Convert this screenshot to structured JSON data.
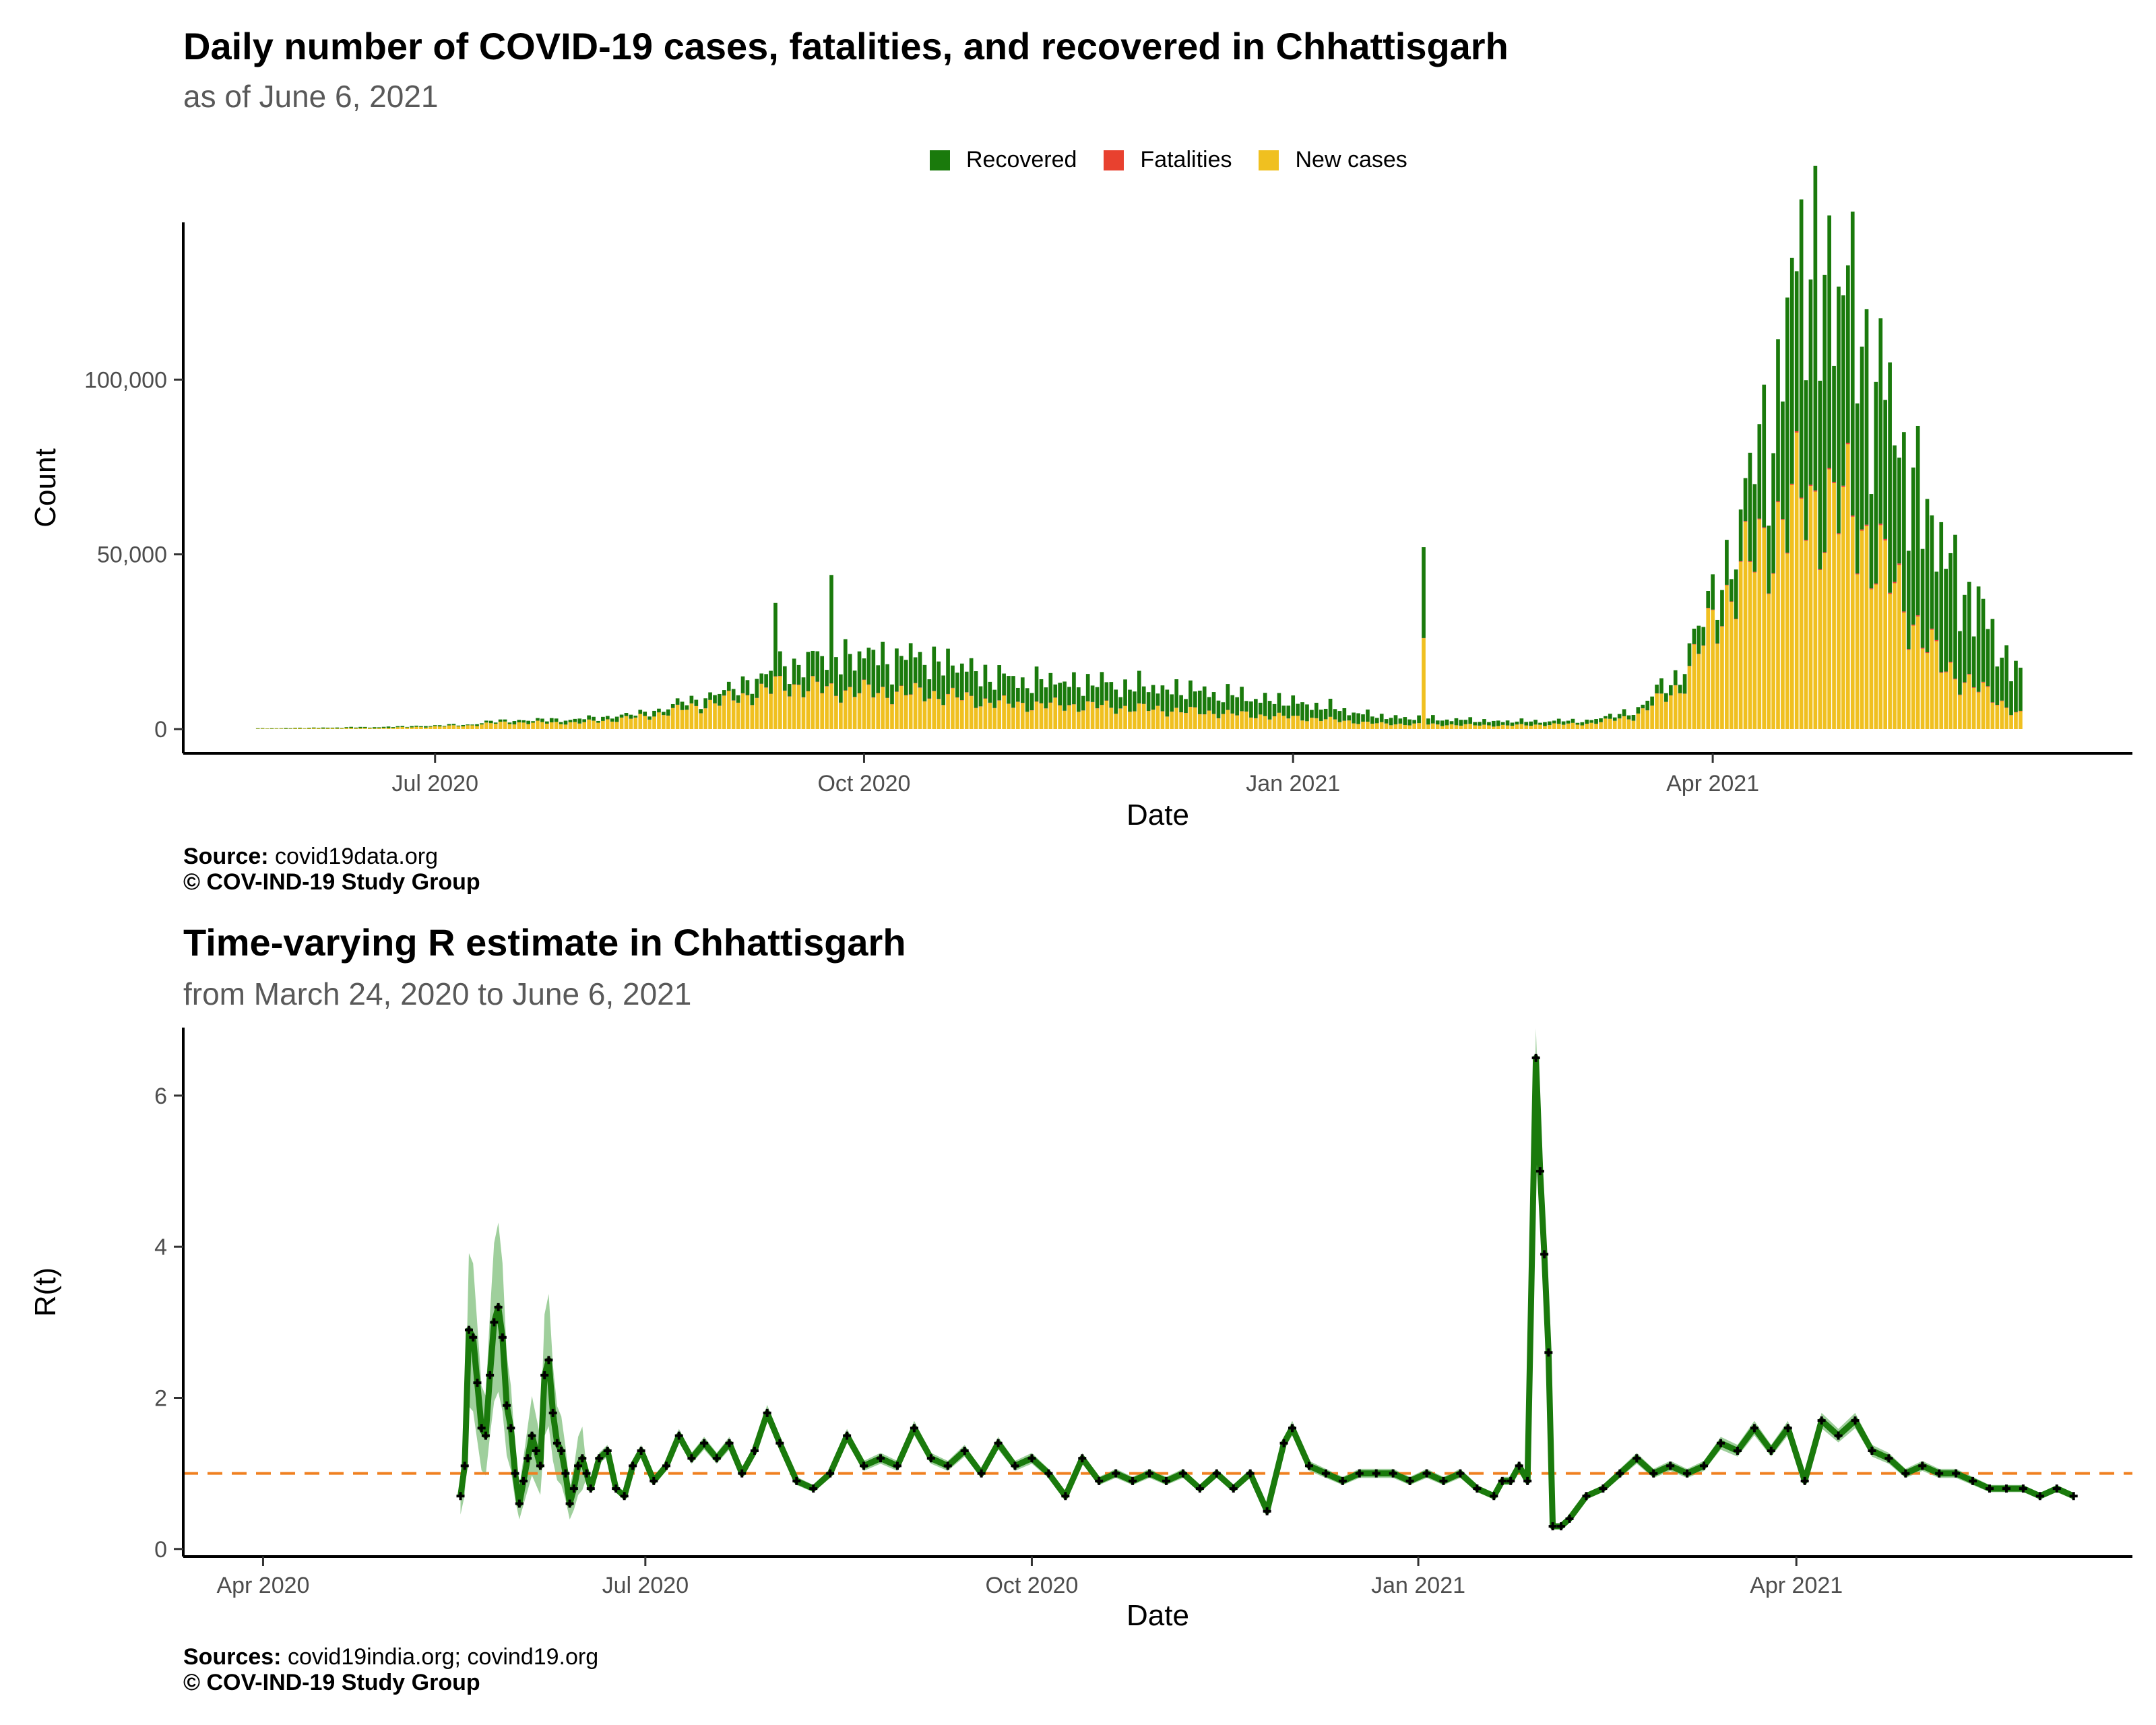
{
  "figure1": {
    "title": "Daily number of COVID-19 cases, fatalities, and recovered in Chhattisgarh",
    "subtitle": "as of June  6, 2021",
    "legend": [
      {
        "label": "Recovered",
        "color": "#1a7a0c"
      },
      {
        "label": "Fatalities",
        "color": "#e8412f"
      },
      {
        "label": "New cases",
        "color": "#f0c020"
      }
    ],
    "caption_source_label": "Source:",
    "caption_source_value": " covid19data.org",
    "caption_copyright": "© COV-IND-19 Study Group"
  },
  "figure2": {
    "title": "Time-varying R estimate in Chhattisgarh",
    "subtitle": "from March 24, 2020 to June  6, 2021",
    "caption_source_label": "Sources:",
    "caption_source_value": " covid19india.org; covind19.org",
    "caption_copyright": "© COV-IND-19 Study Group"
  },
  "chart_data": [
    {
      "type": "bar",
      "stacked": true,
      "xlabel": "Date",
      "ylabel": "Count",
      "x_ticks": [
        {
          "date": "2020-07-01",
          "label": "Jul 2020"
        },
        {
          "date": "2020-10-01",
          "label": "Oct 2020"
        },
        {
          "date": "2021-01-01",
          "label": "Jan 2021"
        },
        {
          "date": "2021-04-01",
          "label": "Apr 2021"
        }
      ],
      "y_ticks": [
        {
          "value": 0,
          "label": "0"
        },
        {
          "value": 50000,
          "label": "50,000"
        },
        {
          "value": 100000,
          "label": "100,000"
        }
      ],
      "ylim": [
        0,
        145000
      ],
      "xlim": [
        "2020-05-08",
        "2021-06-30"
      ],
      "grid": false,
      "legend_position": "top",
      "keyframes": [
        {
          "date": "2020-05-24",
          "new_cases": 100,
          "fatalities": 0,
          "recovered": 100
        },
        {
          "date": "2020-06-20",
          "new_cases": 300,
          "fatalities": 0,
          "recovered": 300
        },
        {
          "date": "2020-07-08",
          "new_cases": 1000,
          "fatalities": 5,
          "recovered": 300
        },
        {
          "date": "2020-07-15",
          "new_cases": 1800,
          "fatalities": 10,
          "recovered": 600
        },
        {
          "date": "2020-08-01",
          "new_cases": 1800,
          "fatalities": 15,
          "recovered": 1000
        },
        {
          "date": "2020-08-15",
          "new_cases": 3500,
          "fatalities": 30,
          "recovered": 1000
        },
        {
          "date": "2020-09-01",
          "new_cases": 8000,
          "fatalities": 60,
          "recovered": 2500
        },
        {
          "date": "2020-09-15",
          "new_cases": 12500,
          "fatalities": 90,
          "recovered": 6000
        },
        {
          "date": "2020-09-25",
          "new_cases": 11000,
          "fatalities": 100,
          "recovered": 10000
        },
        {
          "date": "2020-10-15",
          "new_cases": 10000,
          "fatalities": 90,
          "recovered": 10000
        },
        {
          "date": "2020-11-01",
          "new_cases": 7000,
          "fatalities": 70,
          "recovered": 7000
        },
        {
          "date": "2020-11-20",
          "new_cases": 6500,
          "fatalities": 60,
          "recovered": 6500
        },
        {
          "date": "2020-12-10",
          "new_cases": 5000,
          "fatalities": 50,
          "recovered": 6000
        },
        {
          "date": "2021-01-05",
          "new_cases": 3000,
          "fatalities": 30,
          "recovered": 4000
        },
        {
          "date": "2021-01-20",
          "new_cases": 1500,
          "fatalities": 15,
          "recovered": 2000
        },
        {
          "date": "2021-02-15",
          "new_cases": 1000,
          "fatalities": 10,
          "recovered": 1200
        },
        {
          "date": "2021-03-05",
          "new_cases": 1500,
          "fatalities": 10,
          "recovered": 900
        },
        {
          "date": "2021-03-15",
          "new_cases": 3500,
          "fatalities": 20,
          "recovered": 1500
        },
        {
          "date": "2021-03-25",
          "new_cases": 12000,
          "fatalities": 60,
          "recovered": 4000
        },
        {
          "date": "2021-04-05",
          "new_cases": 40000,
          "fatalities": 150,
          "recovered": 10000
        },
        {
          "date": "2021-04-15",
          "new_cases": 58000,
          "fatalities": 250,
          "recovered": 40000
        },
        {
          "date": "2021-04-20",
          "new_cases": 65000,
          "fatalities": 300,
          "recovered": 70000
        },
        {
          "date": "2021-05-01",
          "new_cases": 62000,
          "fatalities": 350,
          "recovered": 58000
        },
        {
          "date": "2021-05-10",
          "new_cases": 40000,
          "fatalities": 350,
          "recovered": 45000
        },
        {
          "date": "2021-05-20",
          "new_cases": 18000,
          "fatalities": 250,
          "recovered": 33000
        },
        {
          "date": "2021-06-06",
          "new_cases": 4000,
          "fatalities": 100,
          "recovered": 10000
        }
      ],
      "spikes": [
        {
          "date": "2020-09-12",
          "new_cases": 15000,
          "fatalities": 100,
          "recovered": 21000
        },
        {
          "date": "2020-09-24",
          "new_cases": 13000,
          "fatalities": 100,
          "recovered": 31000
        },
        {
          "date": "2021-01-29",
          "new_cases": 26000,
          "fatalities": 50,
          "recovered": 26000
        }
      ]
    },
    {
      "type": "line",
      "xlabel": "Date",
      "ylabel": "R(t)",
      "x_ticks": [
        {
          "date": "2020-04-01",
          "label": "Apr 2020"
        },
        {
          "date": "2020-07-01",
          "label": "Jul 2020"
        },
        {
          "date": "2020-10-01",
          "label": "Oct 2020"
        },
        {
          "date": "2021-01-01",
          "label": "Jan 2021"
        },
        {
          "date": "2021-04-01",
          "label": "Apr 2021"
        }
      ],
      "y_ticks": [
        {
          "value": 0,
          "label": "0"
        },
        {
          "value": 2,
          "label": "2"
        },
        {
          "value": 4,
          "label": "4"
        },
        {
          "value": 6,
          "label": "6"
        }
      ],
      "ylim": [
        -0.1,
        6.9
      ],
      "xlim": [
        "2020-03-13",
        "2021-06-20"
      ],
      "reference_line": {
        "value": 1,
        "color": "#f08020",
        "style": "dashed"
      },
      "line_color": "#1a7a0c",
      "band_color": "#7fbf7b",
      "grid": false,
      "series": [
        {
          "points": [
            [
              "2020-05-18",
              0.7
            ],
            [
              "2020-05-19",
              1.1
            ],
            [
              "2020-05-20",
              2.9
            ],
            [
              "2020-05-21",
              2.8
            ],
            [
              "2020-05-22",
              2.2
            ],
            [
              "2020-05-23",
              1.6
            ],
            [
              "2020-05-24",
              1.5
            ],
            [
              "2020-05-25",
              2.3
            ],
            [
              "2020-05-26",
              3.0
            ],
            [
              "2020-05-27",
              3.2
            ],
            [
              "2020-05-28",
              2.8
            ],
            [
              "2020-05-29",
              1.9
            ],
            [
              "2020-05-30",
              1.6
            ],
            [
              "2020-05-31",
              1.0
            ],
            [
              "2020-06-01",
              0.6
            ],
            [
              "2020-06-02",
              0.9
            ],
            [
              "2020-06-03",
              1.2
            ],
            [
              "2020-06-04",
              1.5
            ],
            [
              "2020-06-05",
              1.3
            ],
            [
              "2020-06-06",
              1.1
            ],
            [
              "2020-06-07",
              2.3
            ],
            [
              "2020-06-08",
              2.5
            ],
            [
              "2020-06-09",
              1.8
            ],
            [
              "2020-06-10",
              1.4
            ],
            [
              "2020-06-11",
              1.3
            ],
            [
              "2020-06-12",
              1.0
            ],
            [
              "2020-06-13",
              0.6
            ],
            [
              "2020-06-14",
              0.8
            ],
            [
              "2020-06-15",
              1.1
            ],
            [
              "2020-06-16",
              1.2
            ],
            [
              "2020-06-17",
              1.0
            ],
            [
              "2020-06-18",
              0.8
            ],
            [
              "2020-06-20",
              1.2
            ],
            [
              "2020-06-22",
              1.3
            ],
            [
              "2020-06-24",
              0.8
            ],
            [
              "2020-06-26",
              0.7
            ],
            [
              "2020-06-28",
              1.1
            ],
            [
              "2020-06-30",
              1.3
            ],
            [
              "2020-07-03",
              0.9
            ],
            [
              "2020-07-06",
              1.1
            ],
            [
              "2020-07-09",
              1.5
            ],
            [
              "2020-07-12",
              1.2
            ],
            [
              "2020-07-15",
              1.4
            ],
            [
              "2020-07-18",
              1.2
            ],
            [
              "2020-07-21",
              1.4
            ],
            [
              "2020-07-24",
              1.0
            ],
            [
              "2020-07-27",
              1.3
            ],
            [
              "2020-07-30",
              1.8
            ],
            [
              "2020-08-02",
              1.4
            ],
            [
              "2020-08-06",
              0.9
            ],
            [
              "2020-08-10",
              0.8
            ],
            [
              "2020-08-14",
              1.0
            ],
            [
              "2020-08-18",
              1.5
            ],
            [
              "2020-08-22",
              1.1
            ],
            [
              "2020-08-26",
              1.2
            ],
            [
              "2020-08-30",
              1.1
            ],
            [
              "2020-09-03",
              1.6
            ],
            [
              "2020-09-07",
              1.2
            ],
            [
              "2020-09-11",
              1.1
            ],
            [
              "2020-09-15",
              1.3
            ],
            [
              "2020-09-19",
              1.0
            ],
            [
              "2020-09-23",
              1.4
            ],
            [
              "2020-09-27",
              1.1
            ],
            [
              "2020-10-01",
              1.2
            ],
            [
              "2020-10-05",
              1.0
            ],
            [
              "2020-10-09",
              0.7
            ],
            [
              "2020-10-13",
              1.2
            ],
            [
              "2020-10-17",
              0.9
            ],
            [
              "2020-10-21",
              1.0
            ],
            [
              "2020-10-25",
              0.9
            ],
            [
              "2020-10-29",
              1.0
            ],
            [
              "2020-11-02",
              0.9
            ],
            [
              "2020-11-06",
              1.0
            ],
            [
              "2020-11-10",
              0.8
            ],
            [
              "2020-11-14",
              1.0
            ],
            [
              "2020-11-18",
              0.8
            ],
            [
              "2020-11-22",
              1.0
            ],
            [
              "2020-11-26",
              0.5
            ],
            [
              "2020-11-30",
              1.4
            ],
            [
              "2020-12-02",
              1.6
            ],
            [
              "2020-12-06",
              1.1
            ],
            [
              "2020-12-10",
              1.0
            ],
            [
              "2020-12-14",
              0.9
            ],
            [
              "2020-12-18",
              1.0
            ],
            [
              "2020-12-22",
              1.0
            ],
            [
              "2020-12-26",
              1.0
            ],
            [
              "2020-12-30",
              0.9
            ],
            [
              "2021-01-03",
              1.0
            ],
            [
              "2021-01-07",
              0.9
            ],
            [
              "2021-01-11",
              1.0
            ],
            [
              "2021-01-15",
              0.8
            ],
            [
              "2021-01-19",
              0.7
            ],
            [
              "2021-01-21",
              0.9
            ],
            [
              "2021-01-23",
              0.9
            ],
            [
              "2021-01-25",
              1.1
            ],
            [
              "2021-01-27",
              0.9
            ],
            [
              "2021-01-29",
              6.5
            ],
            [
              "2021-01-30",
              5.0
            ],
            [
              "2021-01-31",
              3.9
            ],
            [
              "2021-02-01",
              2.6
            ],
            [
              "2021-02-02",
              0.3
            ],
            [
              "2021-02-04",
              0.3
            ],
            [
              "2021-02-06",
              0.4
            ],
            [
              "2021-02-10",
              0.7
            ],
            [
              "2021-02-14",
              0.8
            ],
            [
              "2021-02-18",
              1.0
            ],
            [
              "2021-02-22",
              1.2
            ],
            [
              "2021-02-26",
              1.0
            ],
            [
              "2021-03-02",
              1.1
            ],
            [
              "2021-03-06",
              1.0
            ],
            [
              "2021-03-10",
              1.1
            ],
            [
              "2021-03-14",
              1.4
            ],
            [
              "2021-03-18",
              1.3
            ],
            [
              "2021-03-22",
              1.6
            ],
            [
              "2021-03-26",
              1.3
            ],
            [
              "2021-03-30",
              1.6
            ],
            [
              "2021-04-03",
              0.9
            ],
            [
              "2021-04-07",
              1.7
            ],
            [
              "2021-04-11",
              1.5
            ],
            [
              "2021-04-15",
              1.7
            ],
            [
              "2021-04-19",
              1.3
            ],
            [
              "2021-04-23",
              1.2
            ],
            [
              "2021-04-27",
              1.0
            ],
            [
              "2021-05-01",
              1.1
            ],
            [
              "2021-05-05",
              1.0
            ],
            [
              "2021-05-09",
              1.0
            ],
            [
              "2021-05-13",
              0.9
            ],
            [
              "2021-05-17",
              0.8
            ],
            [
              "2021-05-21",
              0.8
            ],
            [
              "2021-05-25",
              0.8
            ],
            [
              "2021-05-29",
              0.7
            ],
            [
              "2021-06-02",
              0.8
            ],
            [
              "2021-06-06",
              0.7
            ]
          ]
        }
      ]
    }
  ]
}
